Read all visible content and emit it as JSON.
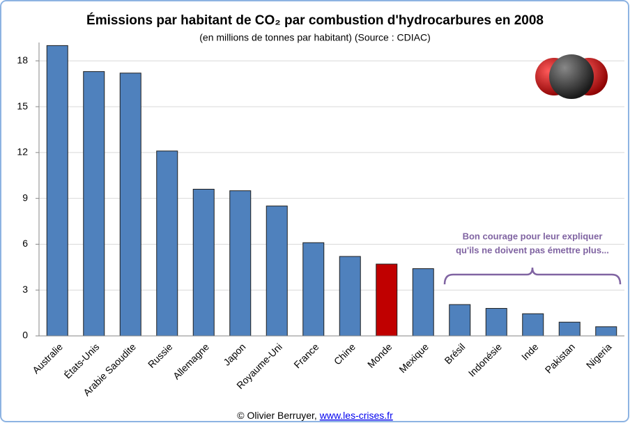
{
  "chart_data": {
    "type": "bar",
    "title": "Émissions par habitant de CO₂ par combustion d'hydrocarbures en 2008",
    "subtitle": "(en millions de tonnes par habitant) (Source : CDIAC)",
    "categories": [
      "Australie",
      "États-Unis",
      "Arabie Saoudite",
      "Russie",
      "Allemagne",
      "Japon",
      "Royaume-Uni",
      "France",
      "Chine",
      "Monde",
      "Mexique",
      "Brésil",
      "Indonésie",
      "Inde",
      "Pakistan",
      "Nigeria"
    ],
    "values": [
      19.0,
      17.3,
      17.2,
      12.1,
      9.6,
      9.5,
      8.5,
      6.1,
      5.2,
      4.7,
      4.4,
      2.05,
      1.8,
      1.45,
      0.9,
      0.6
    ],
    "colors": [
      "#4f81bd",
      "#4f81bd",
      "#4f81bd",
      "#4f81bd",
      "#4f81bd",
      "#4f81bd",
      "#4f81bd",
      "#4f81bd",
      "#4f81bd",
      "#c00000",
      "#4f81bd",
      "#4f81bd",
      "#4f81bd",
      "#4f81bd",
      "#4f81bd",
      "#4f81bd"
    ],
    "ylim": [
      0,
      19.2
    ],
    "yticks": [
      0,
      3,
      6,
      9,
      12,
      15,
      18
    ],
    "grid": true,
    "annotation": [
      "Bon courage pour leur expliquer",
      "qu'ils ne doivent pas émettre plus..."
    ],
    "footer": {
      "text": "© Olivier Berruyer,",
      "link": "www.les-crises.fr"
    }
  }
}
